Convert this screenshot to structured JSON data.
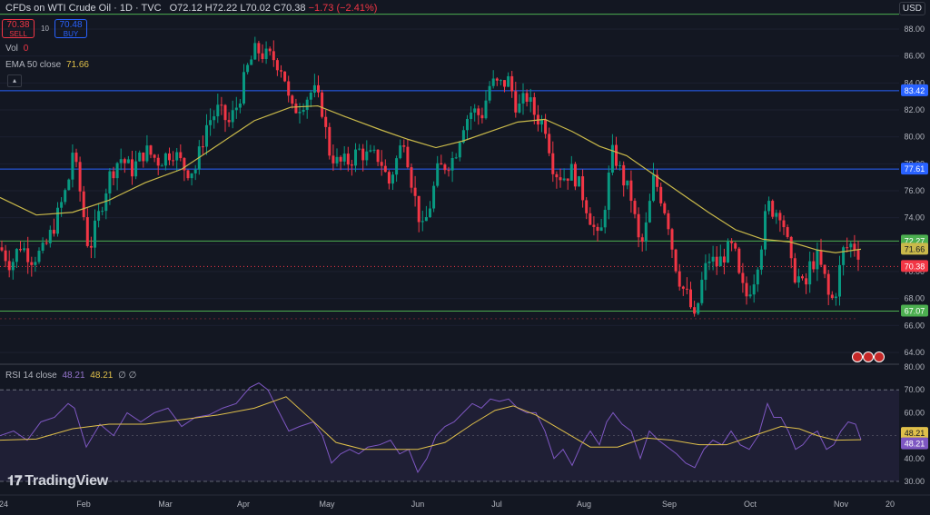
{
  "header": {
    "symbol": "CFDs on WTI Crude Oil · 1D · TVC",
    "open": "O72.12",
    "high": "H72.22",
    "low": "L70.02",
    "close": "C70.38",
    "change": "−1.73 (−2.41%)"
  },
  "trade": {
    "sell_price": "70.38",
    "sell_label": "SELL",
    "buy_price": "70.48",
    "buy_label": "BUY",
    "spread": "10"
  },
  "indicators": {
    "vol_label": "Vol",
    "vol_value": "0",
    "ema_label": "EMA 50 close",
    "ema_value": "71.66",
    "rsi_label": "RSI 14 close",
    "rsi_value": "48.21",
    "rsi_ma_value": "48.21",
    "rsi_extra": "∅ ∅"
  },
  "currency": "USD",
  "brand": "TradingView",
  "colors": {
    "up": "#089981",
    "down": "#f23645",
    "ema": "#c9b94a",
    "rsi": "#7e57c2",
    "rsi_ma": "#e0c04a",
    "support": "#4caf50",
    "resistance": "#2962ff"
  },
  "chart_data": {
    "type": "candlestick",
    "y_ticks": [
      "88.00",
      "86.00",
      "84.00",
      "82.00",
      "80.00",
      "78.00",
      "76.00",
      "74.00",
      "72.00",
      "70.00",
      "68.00",
      "66.00",
      "64.00"
    ],
    "x_ticks": [
      "24",
      "Feb",
      "Mar",
      "Apr",
      "May",
      "Jun",
      "Jul",
      "Aug",
      "Sep",
      "Oct",
      "Nov",
      "20"
    ],
    "ylim": [
      63.5,
      89
    ],
    "horizontal_lines": [
      {
        "value": 83.42,
        "label": "83.42",
        "color": "#2962ff"
      },
      {
        "value": 77.61,
        "label": "77.61",
        "color": "#2962ff"
      },
      {
        "value": 72.27,
        "label": "72.27",
        "color": "#4caf50"
      },
      {
        "value": 67.07,
        "label": "67.07",
        "color": "#4caf50"
      },
      {
        "value": 89.1,
        "label": "",
        "color": "#4caf50"
      }
    ],
    "price_markers": [
      {
        "value": 71.66,
        "label": "71.66",
        "color": "#c9b94a"
      },
      {
        "value": 70.38,
        "label": "70.38",
        "color": "#f23645"
      }
    ],
    "close_path": [
      [
        0,
        71.8
      ],
      [
        12,
        70.5
      ],
      [
        22,
        72
      ],
      [
        35,
        71
      ],
      [
        48,
        71.5
      ],
      [
        60,
        73.5
      ],
      [
        75,
        76.5
      ],
      [
        80,
        79
      ],
      [
        88,
        76
      ],
      [
        98,
        71.5
      ],
      [
        108,
        74
      ],
      [
        120,
        77
      ],
      [
        132,
        78.5
      ],
      [
        145,
        77.5
      ],
      [
        160,
        79
      ],
      [
        175,
        78.2
      ],
      [
        190,
        79
      ],
      [
        205,
        77.5
      ],
      [
        215,
        77.6
      ],
      [
        228,
        81
      ],
      [
        240,
        82
      ],
      [
        252,
        81
      ],
      [
        262,
        82.5
      ],
      [
        272,
        85
      ],
      [
        282,
        86.5
      ],
      [
        292,
        86
      ],
      [
        302,
        85.8
      ],
      [
        312,
        85
      ],
      [
        320,
        81.8
      ],
      [
        332,
        82.5
      ],
      [
        345,
        83.5
      ],
      [
        355,
        82
      ],
      [
        362,
        79
      ],
      [
        372,
        78
      ],
      [
        385,
        78.2
      ],
      [
        395,
        79
      ],
      [
        405,
        78.5
      ],
      [
        418,
        78.5
      ],
      [
        428,
        76.5
      ],
      [
        435,
        78
      ],
      [
        445,
        80
      ],
      [
        455,
        76
      ],
      [
        465,
        73
      ],
      [
        472,
        74.5
      ],
      [
        482,
        77.5
      ],
      [
        492,
        78
      ],
      [
        500,
        78.5
      ],
      [
        510,
        81
      ],
      [
        520,
        82
      ],
      [
        530,
        81.5
      ],
      [
        540,
        84
      ],
      [
        550,
        83.8
      ],
      [
        560,
        84.2
      ],
      [
        570,
        82
      ],
      [
        580,
        83
      ],
      [
        590,
        81.5
      ],
      [
        600,
        81
      ],
      [
        610,
        77.5
      ],
      [
        620,
        77
      ],
      [
        630,
        77.5
      ],
      [
        640,
        76
      ],
      [
        650,
        74
      ],
      [
        660,
        72
      ],
      [
        668,
        76
      ],
      [
        675,
        79
      ],
      [
        685,
        77
      ],
      [
        695,
        75.5
      ],
      [
        705,
        71.5
      ],
      [
        712,
        73.5
      ],
      [
        720,
        77
      ],
      [
        728,
        75.5
      ],
      [
        735,
        74
      ],
      [
        742,
        71
      ],
      [
        750,
        69
      ],
      [
        758,
        68
      ],
      [
        765,
        66.2
      ],
      [
        772,
        69
      ],
      [
        780,
        71
      ],
      [
        790,
        70.5
      ],
      [
        800,
        71.5
      ],
      [
        808,
        71.8
      ],
      [
        815,
        69
      ],
      [
        822,
        68.2
      ],
      [
        830,
        69.5
      ],
      [
        838,
        72
      ],
      [
        845,
        75
      ],
      [
        852,
        74.5
      ],
      [
        860,
        74.5
      ],
      [
        866,
        72.5
      ],
      [
        872,
        70
      ],
      [
        880,
        69.5
      ],
      [
        886,
        68.5
      ],
      [
        892,
        70.5
      ],
      [
        900,
        71
      ],
      [
        908,
        69.5
      ],
      [
        914,
        67.6
      ],
      [
        920,
        68.5
      ],
      [
        928,
        71.5
      ],
      [
        936,
        72
      ],
      [
        944,
        71.8
      ],
      [
        948,
        70.38
      ]
    ],
    "ema50_path": [
      [
        0,
        75.5
      ],
      [
        40,
        74.2
      ],
      [
        80,
        74.4
      ],
      [
        120,
        75.3
      ],
      [
        160,
        76.6
      ],
      [
        200,
        77.6
      ],
      [
        240,
        79.4
      ],
      [
        280,
        81.2
      ],
      [
        320,
        82.2
      ],
      [
        350,
        82.3
      ],
      [
        380,
        81.5
      ],
      [
        420,
        80.5
      ],
      [
        450,
        79.8
      ],
      [
        480,
        79.2
      ],
      [
        510,
        79.7
      ],
      [
        540,
        80.4
      ],
      [
        570,
        81.1
      ],
      [
        600,
        81.3
      ],
      [
        630,
        80.4
      ],
      [
        660,
        79.3
      ],
      [
        690,
        78.6
      ],
      [
        720,
        77.2
      ],
      [
        750,
        75.8
      ],
      [
        780,
        74.4
      ],
      [
        810,
        73.1
      ],
      [
        840,
        72.4
      ],
      [
        870,
        72.2
      ],
      [
        900,
        71.6
      ],
      [
        920,
        71.4
      ],
      [
        948,
        71.66
      ]
    ],
    "rsi": {
      "ylim": [
        28,
        80
      ],
      "y_ticks": [
        "80.00",
        "70.00",
        "60.00",
        "50.00",
        "40.00",
        "30.00"
      ],
      "bands": [
        70,
        30
      ],
      "midline": 50,
      "path": [
        [
          0,
          50
        ],
        [
          15,
          52
        ],
        [
          30,
          48
        ],
        [
          45,
          56
        ],
        [
          60,
          58
        ],
        [
          75,
          64
        ],
        [
          82,
          62
        ],
        [
          95,
          45
        ],
        [
          110,
          55
        ],
        [
          125,
          50
        ],
        [
          140,
          60
        ],
        [
          155,
          56
        ],
        [
          170,
          60
        ],
        [
          185,
          62
        ],
        [
          200,
          54
        ],
        [
          215,
          58
        ],
        [
          230,
          59
        ],
        [
          245,
          62
        ],
        [
          260,
          64
        ],
        [
          275,
          71
        ],
        [
          285,
          73
        ],
        [
          295,
          70
        ],
        [
          305,
          62
        ],
        [
          318,
          52
        ],
        [
          330,
          54
        ],
        [
          345,
          56
        ],
        [
          355,
          50
        ],
        [
          365,
          38
        ],
        [
          375,
          42
        ],
        [
          385,
          44
        ],
        [
          395,
          42
        ],
        [
          405,
          45
        ],
        [
          418,
          46
        ],
        [
          430,
          48
        ],
        [
          440,
          42
        ],
        [
          450,
          44
        ],
        [
          460,
          34
        ],
        [
          470,
          40
        ],
        [
          480,
          50
        ],
        [
          490,
          54
        ],
        [
          500,
          56
        ],
        [
          510,
          60
        ],
        [
          520,
          64
        ],
        [
          530,
          62
        ],
        [
          540,
          66
        ],
        [
          550,
          65
        ],
        [
          560,
          66
        ],
        [
          570,
          62
        ],
        [
          580,
          60
        ],
        [
          590,
          60
        ],
        [
          600,
          52
        ],
        [
          610,
          40
        ],
        [
          620,
          44
        ],
        [
          630,
          37
        ],
        [
          640,
          46
        ],
        [
          650,
          52
        ],
        [
          660,
          46
        ],
        [
          668,
          56
        ],
        [
          675,
          60
        ],
        [
          685,
          55
        ],
        [
          695,
          52
        ],
        [
          705,
          40
        ],
        [
          715,
          52
        ],
        [
          725,
          48
        ],
        [
          735,
          45
        ],
        [
          745,
          42
        ],
        [
          755,
          38
        ],
        [
          765,
          36
        ],
        [
          775,
          44
        ],
        [
          785,
          48
        ],
        [
          795,
          46
        ],
        [
          805,
          52
        ],
        [
          815,
          46
        ],
        [
          825,
          44
        ],
        [
          835,
          50
        ],
        [
          845,
          64
        ],
        [
          852,
          58
        ],
        [
          860,
          58
        ],
        [
          868,
          52
        ],
        [
          876,
          44
        ],
        [
          884,
          46
        ],
        [
          892,
          50
        ],
        [
          900,
          52
        ],
        [
          910,
          44
        ],
        [
          918,
          46
        ],
        [
          926,
          52
        ],
        [
          934,
          56
        ],
        [
          942,
          55
        ],
        [
          948,
          48.21
        ]
      ],
      "ma_path": [
        [
          0,
          48
        ],
        [
          40,
          48.5
        ],
        [
          80,
          53
        ],
        [
          120,
          55
        ],
        [
          160,
          55
        ],
        [
          200,
          57
        ],
        [
          240,
          59
        ],
        [
          280,
          62
        ],
        [
          315,
          67
        ],
        [
          340,
          58
        ],
        [
          370,
          47
        ],
        [
          400,
          44
        ],
        [
          430,
          44
        ],
        [
          460,
          44
        ],
        [
          490,
          47
        ],
        [
          520,
          55
        ],
        [
          545,
          61
        ],
        [
          565,
          63
        ],
        [
          590,
          59
        ],
        [
          620,
          52
        ],
        [
          650,
          45
        ],
        [
          680,
          45
        ],
        [
          710,
          49
        ],
        [
          740,
          48
        ],
        [
          770,
          46
        ],
        [
          800,
          46
        ],
        [
          830,
          50
        ],
        [
          860,
          54
        ],
        [
          880,
          53
        ],
        [
          900,
          50
        ],
        [
          920,
          48
        ],
        [
          948,
          48.21
        ]
      ]
    }
  }
}
